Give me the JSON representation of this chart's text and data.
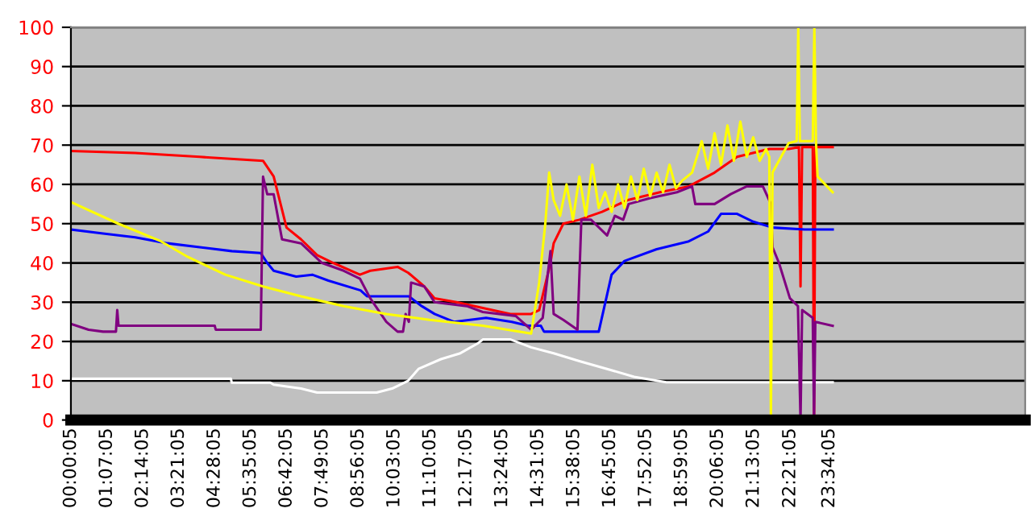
{
  "chart_data": {
    "type": "line",
    "xlim": [
      0,
      29.65
    ],
    "ylim": [
      0,
      100
    ],
    "yticks": [
      0,
      10,
      20,
      30,
      40,
      50,
      60,
      70,
      80,
      90,
      100
    ],
    "xticks": [
      {
        "value": 0.0014,
        "label": "00:00:05"
      },
      {
        "value": 1.1181,
        "label": "01:07:05"
      },
      {
        "value": 2.2347,
        "label": "02:14:05"
      },
      {
        "value": 3.3514,
        "label": "03:21:05"
      },
      {
        "value": 4.4681,
        "label": "04:28:05"
      },
      {
        "value": 5.5847,
        "label": "05:35:05"
      },
      {
        "value": 6.7014,
        "label": "06:42:05"
      },
      {
        "value": 7.8181,
        "label": "07:49:05"
      },
      {
        "value": 8.9347,
        "label": "08:56:05"
      },
      {
        "value": 10.0514,
        "label": "10:03:05"
      },
      {
        "value": 11.1681,
        "label": "11:10:05"
      },
      {
        "value": 12.2847,
        "label": "12:17:05"
      },
      {
        "value": 13.4014,
        "label": "13:24:05"
      },
      {
        "value": 14.5181,
        "label": "14:31:05"
      },
      {
        "value": 15.6347,
        "label": "15:38:05"
      },
      {
        "value": 16.7514,
        "label": "16:45:05"
      },
      {
        "value": 17.8681,
        "label": "17:52:05"
      },
      {
        "value": 18.9847,
        "label": "18:59:05"
      },
      {
        "value": 20.1014,
        "label": "20:06:05"
      },
      {
        "value": 21.2181,
        "label": "21:13:05"
      },
      {
        "value": 22.3514,
        "label": "22:21:05"
      },
      {
        "value": 23.5681,
        "label": "23:34:05"
      }
    ],
    "grid": "y",
    "legend": false,
    "series": [
      {
        "color": "#ffffff",
        "x": [
          0,
          4.97,
          5.0,
          6.2,
          6.3,
          7.15,
          7.65,
          9.5,
          9.98,
          10.48,
          10.8,
          11.5,
          12.1,
          12.64,
          12.8,
          13.66,
          14.3,
          15.0,
          15.8,
          16.66,
          17.5,
          18.5,
          23.67
        ],
        "values": [
          10.5,
          10.5,
          9.5,
          9.5,
          9,
          8,
          7,
          7,
          8,
          10,
          13,
          15.5,
          17,
          19.5,
          20.5,
          20.5,
          18.5,
          17,
          15,
          13,
          11,
          9.6,
          9.6
        ]
      },
      {
        "color": "#ff0000",
        "x": [
          0,
          2,
          4,
          5.97,
          6.3,
          6.7,
          7.15,
          7.65,
          8.15,
          8.98,
          9.3,
          10.15,
          10.48,
          10.98,
          11.3,
          11.98,
          12.8,
          13.66,
          14.3,
          14.55,
          14.9,
          15.0,
          15.3,
          15.8,
          16.5,
          17.3,
          18.3,
          19.2,
          20.0,
          20.7,
          21.7,
          22.3,
          22.62,
          22.67,
          22.72,
          23.05,
          23.09,
          23.13,
          23.67
        ],
        "values": [
          68.5,
          68,
          67,
          66,
          62,
          49,
          46,
          42,
          40,
          37,
          38,
          39,
          37.5,
          34,
          31,
          30,
          28.5,
          27,
          27,
          28,
          40,
          45,
          50,
          51,
          53,
          56,
          58,
          59.5,
          63,
          67,
          69,
          69,
          69.5,
          34,
          69.5,
          69.5,
          0,
          69.5,
          69.5
        ]
      },
      {
        "color": "#0000ff",
        "x": [
          0,
          1,
          2,
          3,
          4,
          5,
          5.9,
          6.1,
          6.3,
          7,
          7.5,
          8,
          9,
          9.2,
          10.5,
          10.9,
          11.3,
          11.9,
          12.9,
          13.7,
          14.2,
          14.6,
          14.7,
          16.4,
          16.8,
          17.2,
          18.2,
          19.2,
          19.8,
          20.2,
          20.7,
          21.2,
          21.8,
          22.8,
          23.67
        ],
        "values": [
          48.5,
          47.5,
          46.5,
          45,
          44,
          43,
          42.5,
          40,
          38,
          36.5,
          37,
          35.5,
          33,
          31.5,
          31.5,
          29,
          27,
          25,
          26,
          25,
          24,
          24,
          22.5,
          22.5,
          37,
          40.5,
          43.5,
          45.5,
          48,
          52.5,
          52.5,
          50.5,
          49,
          48.5,
          48.5
        ]
      },
      {
        "color": "#800080",
        "x": [
          0,
          0.55,
          1.0,
          1.4,
          1.44,
          1.48,
          4.47,
          4.5,
          5.9,
          5.97,
          6.1,
          6.3,
          6.56,
          7.15,
          7.8,
          8.48,
          8.98,
          9.3,
          9.8,
          10.15,
          10.32,
          10.4,
          10.5,
          10.57,
          10.98,
          11.3,
          12.3,
          12.8,
          13.82,
          14.3,
          14.66,
          14.9,
          15.0,
          15.3,
          15.74,
          15.86,
          16.16,
          16.66,
          16.9,
          17.16,
          17.33,
          18.0,
          18.83,
          19.3,
          19.4,
          20.0,
          20.5,
          21.0,
          21.5,
          21.75,
          21.8,
          22.0,
          22.34,
          22.59,
          22.67,
          22.72,
          23.05,
          23.09,
          23.13,
          23.67
        ],
        "values": [
          24.5,
          23,
          22.5,
          22.5,
          28,
          24,
          24,
          23,
          23,
          62,
          57.5,
          57.5,
          46,
          45,
          40,
          38,
          36,
          31,
          25,
          22.5,
          22.5,
          27,
          25,
          35,
          34,
          30,
          29,
          27.5,
          26.5,
          23,
          26,
          43,
          27,
          25.5,
          23,
          51,
          51,
          47,
          52,
          51,
          55,
          56.5,
          58,
          59.5,
          55,
          55,
          57.5,
          59.5,
          59.5,
          55,
          44,
          40,
          31,
          29,
          0,
          28,
          26,
          0,
          25,
          24
        ]
      },
      {
        "color": "#ffff00",
        "x": [
          0,
          1.47,
          2.8,
          3.64,
          4.8,
          5.97,
          7.15,
          8.48,
          9.8,
          11.15,
          12.8,
          14.3,
          14.55,
          14.74,
          14.86,
          15.0,
          15.2,
          15.4,
          15.6,
          15.8,
          16.0,
          16.2,
          16.4,
          16.6,
          16.8,
          17.0,
          17.2,
          17.4,
          17.6,
          17.8,
          18.0,
          18.2,
          18.4,
          18.6,
          18.8,
          19.0,
          19.3,
          19.6,
          19.8,
          20.0,
          20.2,
          20.4,
          20.6,
          20.8,
          21.0,
          21.2,
          21.4,
          21.6,
          21.7,
          21.75,
          21.8,
          22.3,
          22.55,
          22.6,
          22.65,
          22.8,
          23.05,
          23.1,
          23.15,
          23.2,
          23.67
        ],
        "values": [
          55.5,
          50,
          45.5,
          41.5,
          37,
          34,
          31.5,
          29,
          27,
          25.5,
          24,
          22,
          35,
          50,
          63,
          56,
          52,
          60,
          51,
          62,
          52,
          65,
          54,
          58,
          53,
          60,
          54,
          62,
          56,
          64,
          57,
          63,
          58,
          65,
          59,
          61,
          63,
          71,
          64,
          73,
          65,
          75,
          66,
          76,
          67,
          72,
          66,
          69,
          67,
          0,
          63,
          70.5,
          71,
          100,
          71,
          71,
          71,
          100,
          71,
          62,
          58
        ]
      }
    ]
  }
}
